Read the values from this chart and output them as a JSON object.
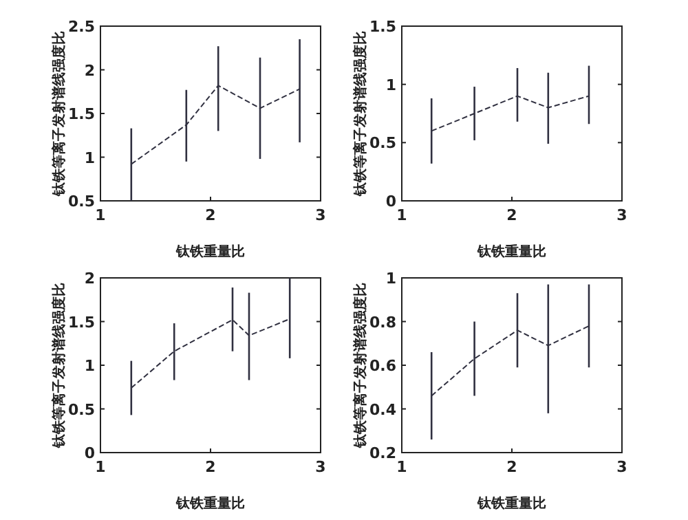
{
  "chart_data": [
    {
      "type": "line",
      "xlabel": "钛铁重量比",
      "ylabel": "钛铁等离子发射谱线强度比",
      "x": [
        1.28,
        1.78,
        2.07,
        2.45,
        2.81
      ],
      "values": [
        0.92,
        1.37,
        1.82,
        1.56,
        1.78
      ],
      "errors": [
        [
          0.5,
          1.33
        ],
        [
          0.95,
          1.77
        ],
        [
          1.3,
          2.27
        ],
        [
          0.98,
          2.14
        ],
        [
          1.17,
          2.35
        ]
      ],
      "color": "#303040",
      "line_style": "dashed",
      "xlim": [
        1,
        3
      ],
      "ylim": [
        0.5,
        2.5
      ],
      "xticks": [
        1,
        2,
        3
      ],
      "yticks": [
        0.5,
        1,
        1.5,
        2,
        2.5
      ]
    },
    {
      "type": "line",
      "xlabel": "钛铁重量比",
      "ylabel": "钛铁等离子发射谱线强度比",
      "x": [
        1.27,
        1.66,
        2.05,
        2.33,
        2.7
      ],
      "values": [
        0.6,
        0.75,
        0.9,
        0.8,
        0.9
      ],
      "errors": [
        [
          0.32,
          0.88
        ],
        [
          0.52,
          0.98
        ],
        [
          0.68,
          1.14
        ],
        [
          0.49,
          1.1
        ],
        [
          0.66,
          1.16
        ]
      ],
      "color": "#303040",
      "line_style": "dashed",
      "xlim": [
        1,
        3
      ],
      "ylim": [
        0,
        1.5
      ],
      "xticks": [
        1,
        2,
        3
      ],
      "yticks": [
        0,
        0.5,
        1,
        1.5
      ]
    },
    {
      "type": "line",
      "xlabel": "钛铁重量比",
      "ylabel": "钛铁等离子发射谱线强度比",
      "x": [
        1.28,
        1.67,
        2.2,
        2.35,
        2.72
      ],
      "values": [
        0.74,
        1.16,
        1.52,
        1.34,
        1.53
      ],
      "errors": [
        [
          0.43,
          1.05
        ],
        [
          0.83,
          1.48
        ],
        [
          1.16,
          1.89
        ],
        [
          0.83,
          1.83
        ],
        [
          1.08,
          2.0
        ]
      ],
      "color": "#303040",
      "line_style": "dashed",
      "xlim": [
        1,
        3
      ],
      "ylim": [
        0,
        2
      ],
      "xticks": [
        1,
        2,
        3
      ],
      "yticks": [
        0,
        0.5,
        1,
        1.5,
        2
      ]
    },
    {
      "type": "line",
      "xlabel": "钛铁重量比",
      "ylabel": "钛铁等离子发射谱线强度比",
      "x": [
        1.27,
        1.66,
        2.05,
        2.33,
        2.7
      ],
      "values": [
        0.46,
        0.63,
        0.76,
        0.69,
        0.78
      ],
      "errors": [
        [
          0.26,
          0.66
        ],
        [
          0.46,
          0.8
        ],
        [
          0.59,
          0.93
        ],
        [
          0.38,
          0.97
        ],
        [
          0.59,
          0.97
        ]
      ],
      "color": "#303040",
      "line_style": "dashed",
      "xlim": [
        1,
        3
      ],
      "ylim": [
        0.2,
        1
      ],
      "xticks": [
        1,
        2,
        3
      ],
      "yticks": [
        0.2,
        0.4,
        0.6,
        0.8,
        1
      ]
    }
  ]
}
